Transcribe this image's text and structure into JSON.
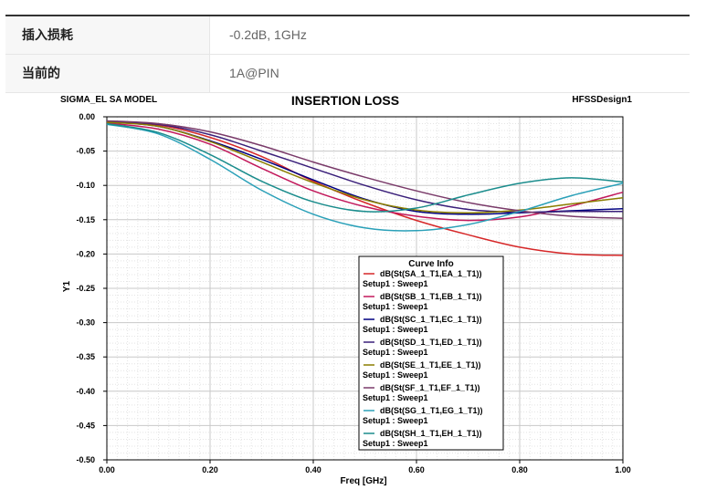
{
  "spec_table": {
    "rows": [
      {
        "label": "插入损耗",
        "value": "-0.2dB, 1GHz"
      },
      {
        "label": "当前的",
        "value": "1A@PIN"
      }
    ]
  },
  "chart_data": {
    "type": "line",
    "title": "INSERTION LOSS",
    "top_left_label": "SIGMA_EL SA MODEL",
    "top_right_label": "HFSSDesign1",
    "xlabel": "Freq [GHz]",
    "ylabel": "Y1",
    "xlim": [
      0.0,
      1.0
    ],
    "ylim": [
      -0.5,
      0.0
    ],
    "x_ticks": [
      "0.00",
      "0.20",
      "0.40",
      "0.60",
      "0.80",
      "1.00"
    ],
    "y_ticks": [
      "0.00",
      "-0.05",
      "-0.10",
      "-0.15",
      "-0.20",
      "-0.25",
      "-0.30",
      "-0.35",
      "-0.40",
      "-0.45",
      "-0.50"
    ],
    "grid": true,
    "legend": {
      "title": "Curve Info",
      "placement": "bottom-right",
      "sublabel": "Setup1 : Sweep1"
    },
    "x": [
      0.0,
      0.1,
      0.2,
      0.3,
      0.4,
      0.5,
      0.6,
      0.7,
      0.8,
      0.9,
      1.0
    ],
    "series": [
      {
        "name": "dB(St(SA_1_T1,EA_1_T1))",
        "color": "#d62728",
        "values": [
          -0.008,
          -0.012,
          -0.03,
          -0.058,
          -0.094,
          -0.125,
          -0.151,
          -0.172,
          -0.19,
          -0.2,
          -0.202
        ]
      },
      {
        "name": "dB(St(SB_1_T1,EB_1_T1))",
        "color": "#c2185b",
        "values": [
          -0.009,
          -0.018,
          -0.04,
          -0.075,
          -0.108,
          -0.131,
          -0.145,
          -0.151,
          -0.146,
          -0.13,
          -0.11
        ]
      },
      {
        "name": "dB(St(SC_1_T1,EC_1_T1))",
        "color": "#000080",
        "values": [
          -0.007,
          -0.014,
          -0.035,
          -0.062,
          -0.092,
          -0.12,
          -0.138,
          -0.142,
          -0.14,
          -0.137,
          -0.134
        ]
      },
      {
        "name": "dB(St(SD_1_T1,ED_1_T1))",
        "color": "#3a1f7a",
        "values": [
          -0.007,
          -0.011,
          -0.026,
          -0.05,
          -0.075,
          -0.1,
          -0.121,
          -0.135,
          -0.139,
          -0.138,
          -0.138
        ]
      },
      {
        "name": "dB(St(SE_1_T1,EE_1_T1))",
        "color": "#8b7d00",
        "values": [
          -0.008,
          -0.014,
          -0.036,
          -0.066,
          -0.096,
          -0.121,
          -0.136,
          -0.14,
          -0.136,
          -0.127,
          -0.118
        ]
      },
      {
        "name": "dB(St(SF_1_T1,EF_1_T1))",
        "color": "#7a3b6a",
        "values": [
          -0.006,
          -0.01,
          -0.022,
          -0.042,
          -0.066,
          -0.088,
          -0.108,
          -0.125,
          -0.137,
          -0.145,
          -0.148
        ]
      },
      {
        "name": "dB(St(SG_1_T1,EG_1_T1))",
        "color": "#2aa0b8",
        "values": [
          -0.011,
          -0.025,
          -0.062,
          -0.107,
          -0.142,
          -0.162,
          -0.166,
          -0.157,
          -0.138,
          -0.115,
          -0.097
        ]
      },
      {
        "name": "dB(St(SH_1_T1,EH_1_T1))",
        "color": "#1a8c8c",
        "values": [
          -0.01,
          -0.023,
          -0.055,
          -0.094,
          -0.124,
          -0.138,
          -0.133,
          -0.114,
          -0.097,
          -0.089,
          -0.095
        ]
      }
    ]
  }
}
